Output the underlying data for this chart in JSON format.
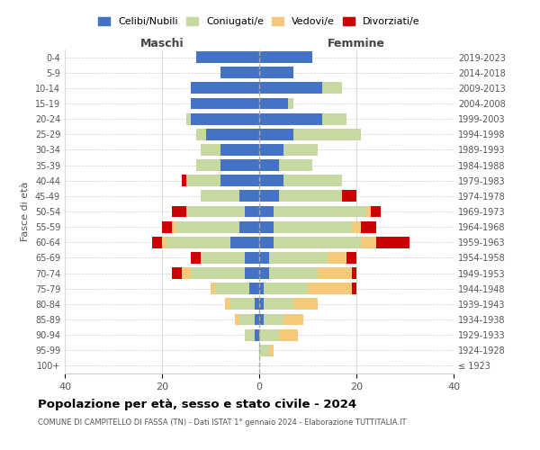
{
  "age_groups": [
    "100+",
    "95-99",
    "90-94",
    "85-89",
    "80-84",
    "75-79",
    "70-74",
    "65-69",
    "60-64",
    "55-59",
    "50-54",
    "45-49",
    "40-44",
    "35-39",
    "30-34",
    "25-29",
    "20-24",
    "15-19",
    "10-14",
    "5-9",
    "0-4"
  ],
  "birth_years": [
    "≤ 1923",
    "1924-1928",
    "1929-1933",
    "1934-1938",
    "1939-1943",
    "1944-1948",
    "1949-1953",
    "1954-1958",
    "1959-1963",
    "1964-1968",
    "1969-1973",
    "1974-1978",
    "1979-1983",
    "1984-1988",
    "1989-1993",
    "1994-1998",
    "1999-2003",
    "2004-2008",
    "2009-2013",
    "2014-2018",
    "2019-2023"
  ],
  "colors": {
    "celibe": "#4472C4",
    "coniugato": "#C6D9A0",
    "vedovo": "#F5C97A",
    "divorziato": "#CC0000"
  },
  "maschi": {
    "celibe": [
      0,
      0,
      1,
      1,
      1,
      2,
      3,
      3,
      6,
      4,
      3,
      4,
      8,
      8,
      8,
      11,
      14,
      14,
      14,
      8,
      13
    ],
    "coniugato": [
      0,
      0,
      2,
      3,
      5,
      7,
      11,
      9,
      13,
      13,
      12,
      8,
      7,
      5,
      4,
      2,
      1,
      0,
      0,
      0,
      0
    ],
    "vedovo": [
      0,
      0,
      0,
      1,
      1,
      1,
      2,
      0,
      1,
      1,
      0,
      0,
      0,
      0,
      0,
      0,
      0,
      0,
      0,
      0,
      0
    ],
    "divorziato": [
      0,
      0,
      0,
      0,
      0,
      0,
      2,
      2,
      2,
      2,
      3,
      0,
      1,
      0,
      0,
      0,
      0,
      0,
      0,
      0,
      0
    ]
  },
  "femmine": {
    "nubile": [
      0,
      0,
      0,
      1,
      1,
      1,
      2,
      2,
      3,
      3,
      3,
      4,
      5,
      4,
      5,
      7,
      13,
      6,
      13,
      7,
      11
    ],
    "coniugata": [
      0,
      2,
      4,
      4,
      6,
      9,
      10,
      12,
      18,
      16,
      19,
      13,
      12,
      7,
      7,
      14,
      5,
      1,
      4,
      0,
      0
    ],
    "vedova": [
      0,
      1,
      4,
      4,
      5,
      9,
      7,
      4,
      3,
      2,
      1,
      0,
      0,
      0,
      0,
      0,
      0,
      0,
      0,
      0,
      0
    ],
    "divorziata": [
      0,
      0,
      0,
      0,
      0,
      1,
      1,
      2,
      7,
      3,
      2,
      3,
      0,
      0,
      0,
      0,
      0,
      0,
      0,
      0,
      0
    ]
  },
  "xlim": 40,
  "title": "Popolazione per età, sesso e stato civile - 2024",
  "subtitle": "COMUNE DI CAMPITELLO DI FASSA (TN) - Dati ISTAT 1° gennaio 2024 - Elaborazione TUTTITALIA.IT",
  "ylabel_left": "Fasce di età",
  "legend_labels": [
    "Celibi/Nubili",
    "Coniugati/e",
    "Vedovi/e",
    "Divorziati/e"
  ]
}
